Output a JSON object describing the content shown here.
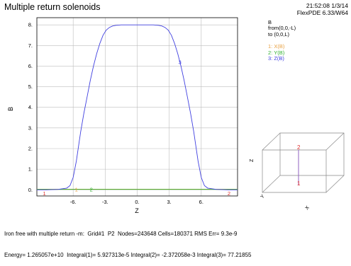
{
  "header": {
    "title": "Multiple return solenoids",
    "timestamp": "21:52:08 1/3/14",
    "software": "FlexPDE 6.33/W64"
  },
  "legend": {
    "quantity": "B",
    "from": "from(0,0,-L)",
    "to": "to (0,0,L)",
    "entries": [
      {
        "label": "1: X(B)",
        "color": "#e8a040"
      },
      {
        "label": "2: Y(B)",
        "color": "#30b030"
      },
      {
        "label": "3: Z(B)",
        "color": "#4040e0"
      }
    ]
  },
  "footer": {
    "line1": "Iron free with multiple return -m:  Grid#1  P2  Nodes=243648 Cells=180371 RMS Err= 9.3e-9",
    "line2": "Energy= 1.265057e+10  Integral(1)= 5.927313e-5 Integral(2)= -2.372058e-3 Integral(3)= 77.21855"
  },
  "chart_data": {
    "type": "line",
    "title": "Multiple return solenoids",
    "xlabel": "Z",
    "ylabel": "B",
    "xlim": [
      -9.4,
      9.4
    ],
    "ylim": [
      -0.3,
      8.35
    ],
    "x_ticks": [
      -6,
      -3,
      0,
      3,
      6
    ],
    "x_tick_labels": [
      "-6.",
      "-3.",
      "0.",
      "3.",
      "6."
    ],
    "y_ticks": [
      0,
      1,
      2,
      3,
      4,
      5,
      6,
      7,
      8
    ],
    "y_tick_labels": [
      "0.",
      "1.",
      "2.",
      "3.",
      "4.",
      "5.",
      "6.",
      "7.",
      "8."
    ],
    "grid": true,
    "series": [
      {
        "name": "X(B)",
        "color": "#e8a040",
        "x": [
          -9.4,
          -6,
          -3,
          0,
          3,
          6,
          9.4
        ],
        "y": [
          0.03,
          0.03,
          0.03,
          0.03,
          0.03,
          0.03,
          0.03
        ]
      },
      {
        "name": "Y(B)",
        "color": "#30b030",
        "x": [
          -9.4,
          -6,
          -3,
          0,
          3,
          6,
          9.4
        ],
        "y": [
          0.02,
          0.02,
          0.02,
          0.02,
          0.02,
          0.02,
          0.02
        ]
      },
      {
        "name": "Z(B)",
        "color": "#4040e0",
        "x": [
          -9.4,
          -8.5,
          -7.4,
          -7.0,
          -6.6,
          -6.3,
          -6.0,
          -5.7,
          -5.5,
          -5.3,
          -5.0,
          -4.7,
          -4.4,
          -4.1,
          -3.8,
          -3.5,
          -3.2,
          -2.9,
          -2.6,
          -2.3,
          -2.0,
          -1.5,
          -1.0,
          0.0,
          1.0,
          1.5,
          2.0,
          2.3,
          2.6,
          2.9,
          3.2,
          3.5,
          3.8,
          4.1,
          4.4,
          4.7,
          5.0,
          5.3,
          5.5,
          5.7,
          6.0,
          6.3,
          6.6,
          7.0,
          7.4,
          8.5,
          9.4
        ],
        "y": [
          0.0,
          0.0,
          0.02,
          0.05,
          0.08,
          0.2,
          0.6,
          1.4,
          2.1,
          2.8,
          3.7,
          4.5,
          5.3,
          6.0,
          6.6,
          7.1,
          7.5,
          7.75,
          7.88,
          7.95,
          7.98,
          8.0,
          8.0,
          8.0,
          8.0,
          8.0,
          7.98,
          7.95,
          7.88,
          7.75,
          7.5,
          7.1,
          6.6,
          6.0,
          5.3,
          4.5,
          3.7,
          2.8,
          2.1,
          1.4,
          0.6,
          0.2,
          0.08,
          0.05,
          0.02,
          0.0,
          0.0
        ]
      }
    ],
    "annotations": [
      {
        "text": "1",
        "x": -8.7,
        "y": -0.17,
        "color": "#e03030"
      },
      {
        "text": "2",
        "x": 8.6,
        "y": -0.17,
        "color": "#e03030"
      },
      {
        "text": "1",
        "x": -5.7,
        "y": 0.02,
        "color": "#e8a040"
      },
      {
        "text": "2",
        "x": -4.3,
        "y": 0.02,
        "color": "#30b030"
      },
      {
        "text": "3",
        "x": 4.0,
        "y": 6.2,
        "color": "#4040e0"
      }
    ],
    "inset": {
      "type": "3d-box",
      "axis_labels": [
        "Z",
        "Y",
        "X"
      ],
      "markers": [
        "2",
        "1"
      ]
    }
  }
}
